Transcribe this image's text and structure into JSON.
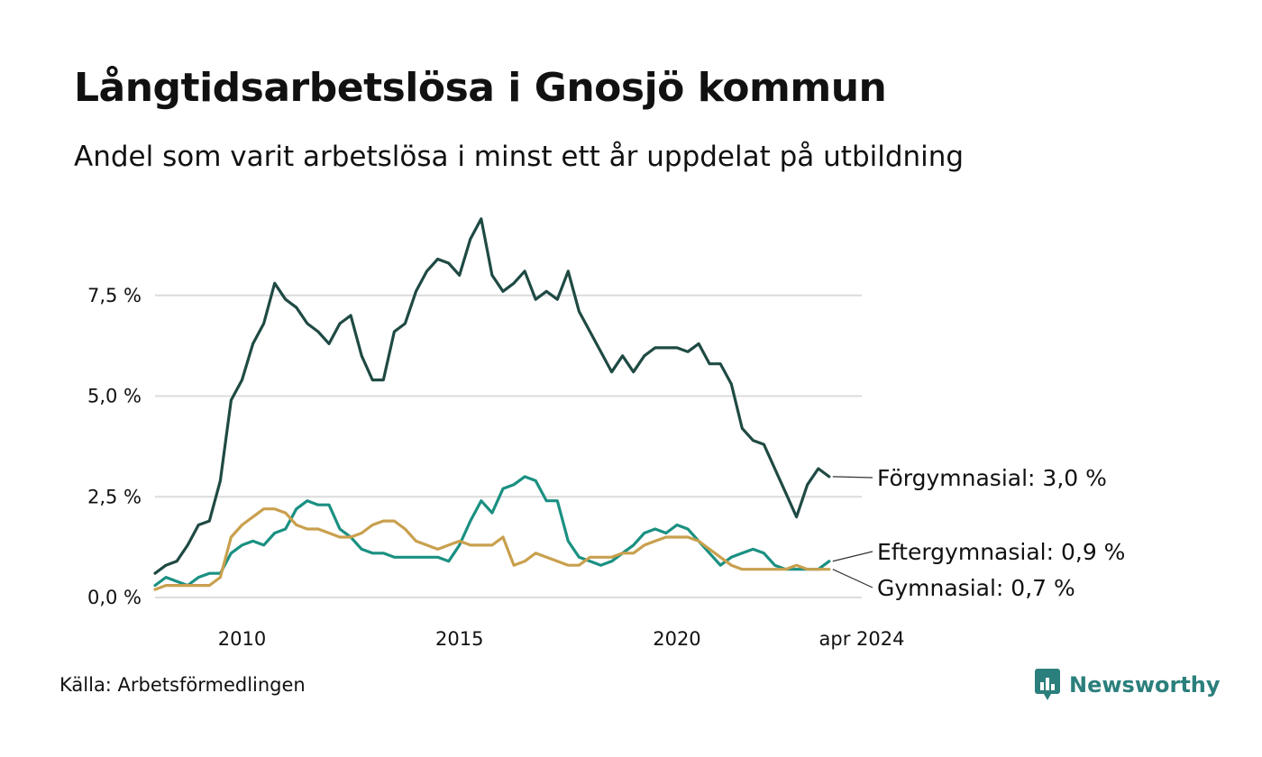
{
  "chart_data": {
    "type": "line",
    "title": "Långtidsarbetslösa i Gnosjö kommun",
    "subtitle": "Andel som varit arbetslösa i minst ett år uppdelat på utbildning",
    "ylim": [
      0,
      10
    ],
    "y_ticks": [
      0,
      2.5,
      5,
      7.5
    ],
    "y_tick_labels": [
      "0,0 %",
      "2,5 %",
      "5,0 %",
      "7,5 %"
    ],
    "x_ticks": [
      2010,
      2015,
      2020,
      2024.25
    ],
    "x_tick_labels": [
      "2010",
      "2015",
      "2020",
      "apr 2024"
    ],
    "xlim": [
      2008.0,
      2024.25
    ],
    "grid": true,
    "legend": "direct labels at line ends",
    "x_start": 2008.0,
    "x_step": 0.25,
    "series": [
      {
        "name": "Förgymnasial",
        "end_label": "Förgymnasial: 3,0 %",
        "color": "#1f4a44",
        "values": [
          0.6,
          0.8,
          0.9,
          1.3,
          1.8,
          1.9,
          2.9,
          4.9,
          5.4,
          6.3,
          6.8,
          7.8,
          7.4,
          7.2,
          6.8,
          6.6,
          6.3,
          6.8,
          7.0,
          6.0,
          5.4,
          5.4,
          6.6,
          6.8,
          7.6,
          8.1,
          8.4,
          8.3,
          8.0,
          8.9,
          9.4,
          8.0,
          7.6,
          7.8,
          8.1,
          7.4,
          7.6,
          7.4,
          8.1,
          7.1,
          6.6,
          6.1,
          5.6,
          6.0,
          5.6,
          6.0,
          6.2,
          6.2,
          6.2,
          6.1,
          6.3,
          5.8,
          5.8,
          5.3,
          4.2,
          3.9,
          3.8,
          3.2,
          2.6,
          2.0,
          2.8,
          3.2,
          3.0
        ]
      },
      {
        "name": "Eftergymnasial",
        "end_label": "Eftergymnasial: 0,9 %",
        "color": "#1a9082",
        "values": [
          0.3,
          0.5,
          0.4,
          0.3,
          0.5,
          0.6,
          0.6,
          1.1,
          1.3,
          1.4,
          1.3,
          1.6,
          1.7,
          2.2,
          2.4,
          2.3,
          2.3,
          1.7,
          1.5,
          1.2,
          1.1,
          1.1,
          1.0,
          1.0,
          1.0,
          1.0,
          1.0,
          0.9,
          1.3,
          1.9,
          2.4,
          2.1,
          2.7,
          2.8,
          3.0,
          2.9,
          2.4,
          2.4,
          1.4,
          1.0,
          0.9,
          0.8,
          0.9,
          1.1,
          1.3,
          1.6,
          1.7,
          1.6,
          1.8,
          1.7,
          1.4,
          1.1,
          0.8,
          1.0,
          1.1,
          1.2,
          1.1,
          0.8,
          0.7,
          0.7,
          0.7,
          0.7,
          0.9
        ]
      },
      {
        "name": "Gymnasial",
        "end_label": "Gymnasial: 0,7 %",
        "color": "#c9a04e",
        "values": [
          0.2,
          0.3,
          0.3,
          0.3,
          0.3,
          0.3,
          0.5,
          1.5,
          1.8,
          2.0,
          2.2,
          2.2,
          2.1,
          1.8,
          1.7,
          1.7,
          1.6,
          1.5,
          1.5,
          1.6,
          1.8,
          1.9,
          1.9,
          1.7,
          1.4,
          1.3,
          1.2,
          1.3,
          1.4,
          1.3,
          1.3,
          1.3,
          1.5,
          0.8,
          0.9,
          1.1,
          1.0,
          0.9,
          0.8,
          0.8,
          1.0,
          1.0,
          1.0,
          1.1,
          1.1,
          1.3,
          1.4,
          1.5,
          1.5,
          1.5,
          1.4,
          1.2,
          1.0,
          0.8,
          0.7,
          0.7,
          0.7,
          0.7,
          0.7,
          0.8,
          0.7,
          0.7,
          0.7
        ]
      }
    ]
  },
  "footer": {
    "source": "Källa: Arbetsförmedlingen",
    "brand": "Newsworthy"
  },
  "colors": {
    "grid": "#dcdcdc",
    "text": "#111111",
    "brand": "#2b7f7c"
  },
  "icons": {
    "brand": "newsworthy-chart-bubble-icon"
  }
}
